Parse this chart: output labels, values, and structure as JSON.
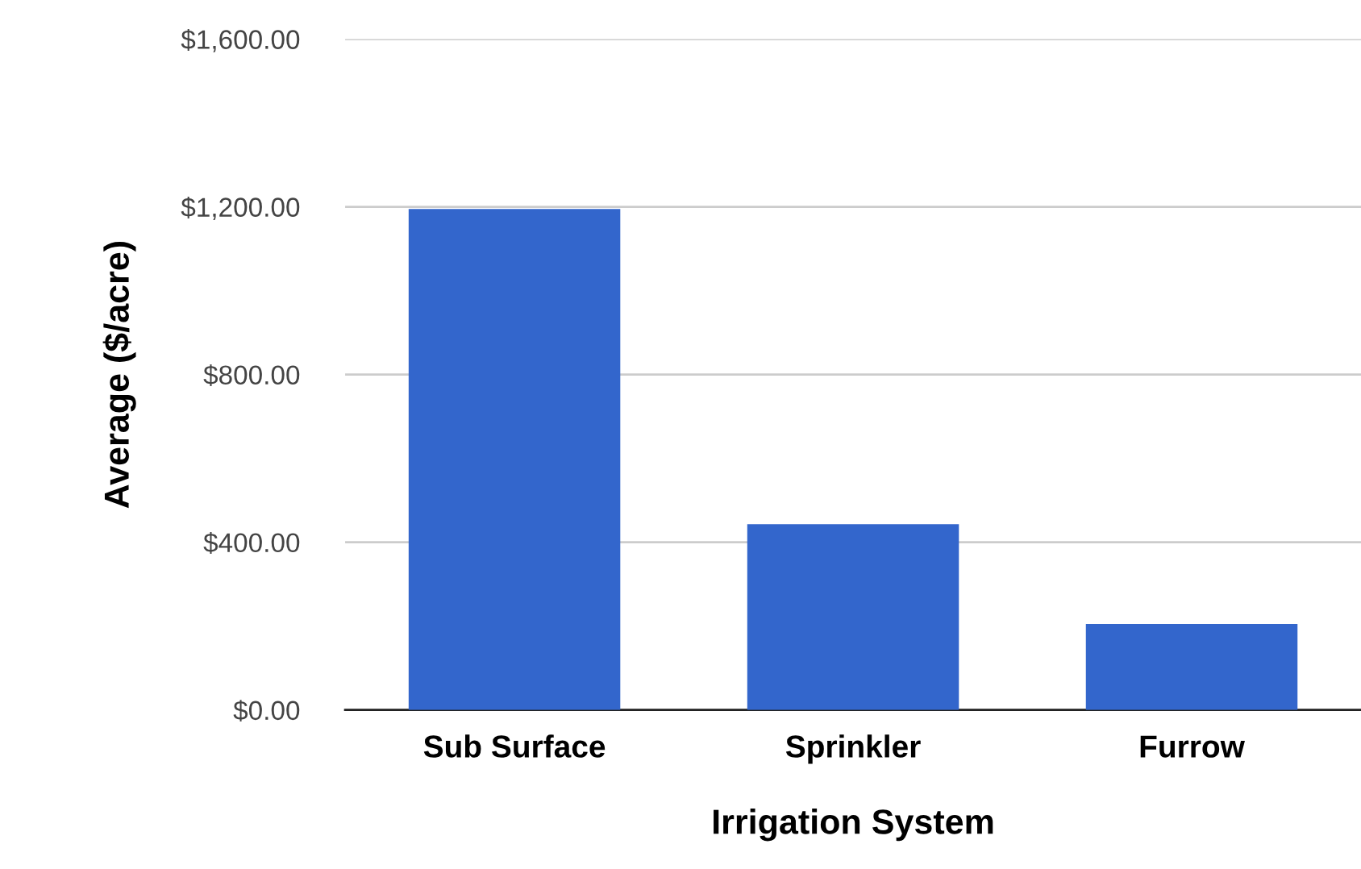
{
  "chart_data": {
    "type": "bar",
    "xlabel": "Irrigation System",
    "ylabel": "Average ($/acre)",
    "categories": [
      "Sub Surface",
      "Sprinkler",
      "Furrow"
    ],
    "values": [
      1195,
      443,
      205
    ],
    "color": "#3366cc",
    "ylim": [
      0,
      1600
    ],
    "yticks": [
      {
        "value": 0,
        "label": "$0.00"
      },
      {
        "value": 400,
        "label": "$400.00"
      },
      {
        "value": 800,
        "label": "$800.00"
      },
      {
        "value": 1200,
        "label": "$1,200.00"
      },
      {
        "value": 1600,
        "label": "$1,600.00"
      }
    ],
    "grid": "y",
    "legend": false
  }
}
